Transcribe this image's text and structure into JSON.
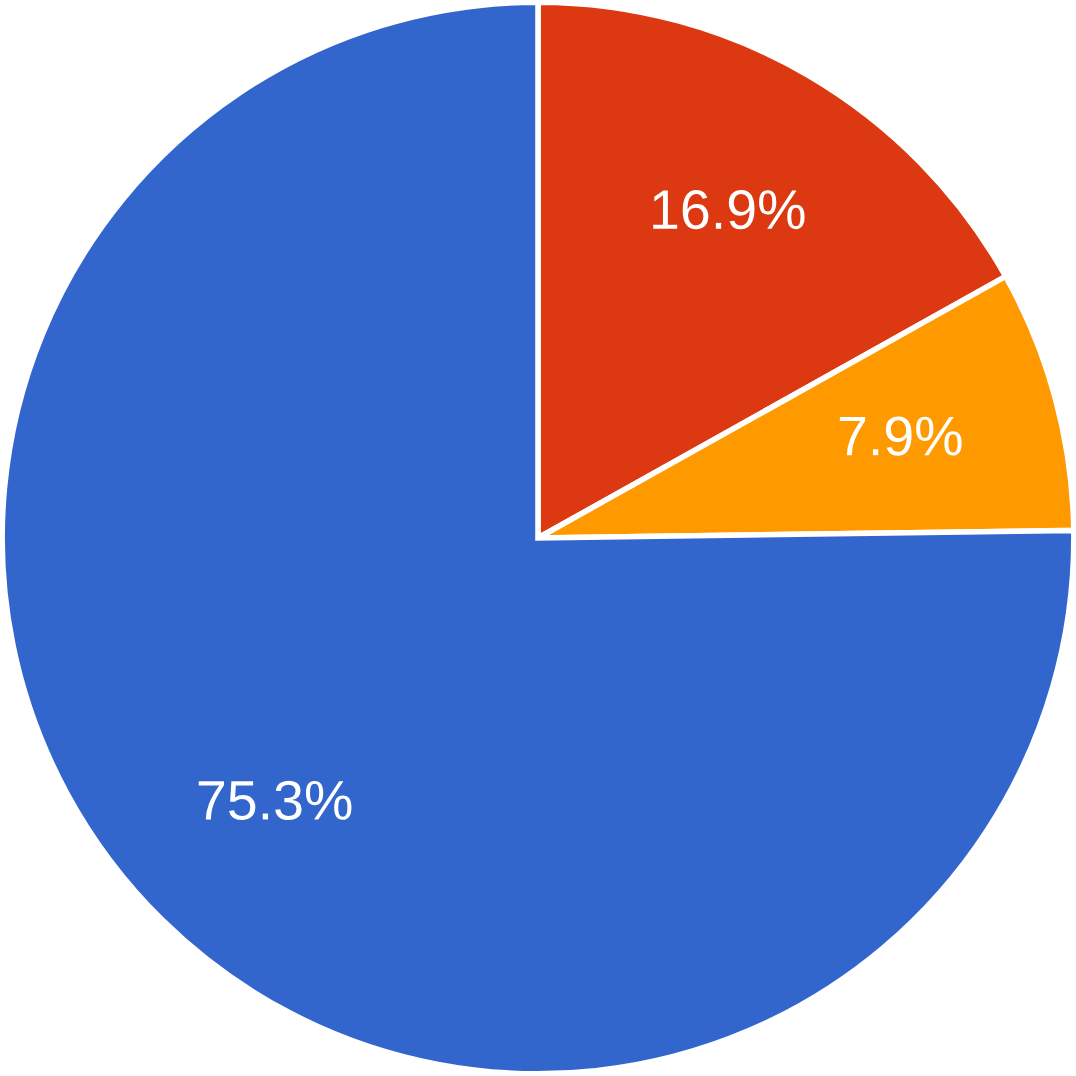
{
  "chart_data": {
    "type": "pie",
    "categories": [
      null,
      null,
      null
    ],
    "values": [
      16.9,
      7.9,
      75.3
    ],
    "colors": [
      "#dc3912",
      "#ff9900",
      "#3366cc"
    ],
    "value_labels": [
      "16.9%",
      "7.9%",
      "75.3%"
    ]
  }
}
